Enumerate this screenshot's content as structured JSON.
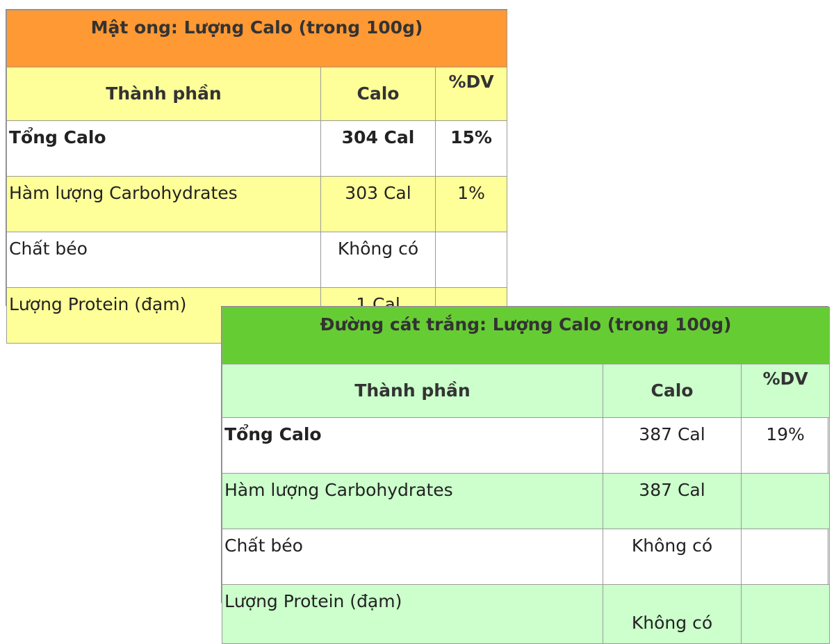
{
  "honey": {
    "title": "Mật ong: Lượng Calo (trong 100g)",
    "headers": {
      "component": "Thành phần",
      "calo": "Calo",
      "dv": "%DV"
    },
    "rows": [
      {
        "label": "Tổng Calo",
        "calo": "304 Cal",
        "dv": "15%"
      },
      {
        "label": "Hàm lượng Carbohydrates",
        "calo": "303 Cal",
        "dv": "1%"
      },
      {
        "label": "Chất béo",
        "calo": "Không có",
        "dv": ""
      },
      {
        "label": "Lượng Protein (đạm)",
        "calo": "1 Cal",
        "dv": ""
      }
    ],
    "colors": {
      "title_bg": "#ff9933",
      "band_bg": "#ffff99"
    }
  },
  "sugar": {
    "title": "Đường cát trắng: Lượng Calo (trong 100g)",
    "headers": {
      "component": "Thành phần",
      "calo": "Calo",
      "dv": "%DV"
    },
    "rows": [
      {
        "label": "Tổng Calo",
        "calo": "387 Cal",
        "dv": "19%"
      },
      {
        "label": "Hàm lượng Carbohydrates",
        "calo": "387 Cal",
        "dv": ""
      },
      {
        "label": "Chất béo",
        "calo": "Không có",
        "dv": ""
      },
      {
        "label": "Lượng Protein (đạm)",
        "calo": "Không có",
        "dv": ""
      }
    ],
    "colors": {
      "title_bg": "#66cc33",
      "band_bg": "#ccffcc"
    }
  }
}
